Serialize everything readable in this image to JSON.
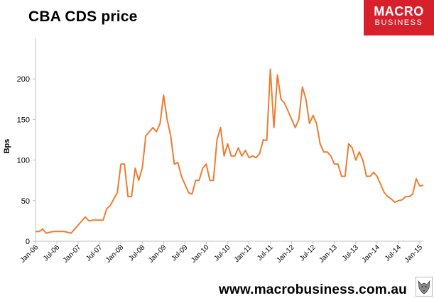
{
  "header": {
    "title": "CBA CDS price",
    "logo_line1": "MACRO",
    "logo_line2": "BUSINESS"
  },
  "footer": {
    "url": "www.macrobusiness.com.au"
  },
  "colors": {
    "line": "#ed7d31",
    "logo_bg": "#d6212c",
    "axis": "#bfbfbf"
  },
  "chart_data": {
    "type": "line",
    "title": "CBA CDS price",
    "ylabel": "Bps",
    "xlabel": "",
    "ylim": [
      0,
      250
    ],
    "yticks": [
      0,
      50,
      100,
      150,
      200
    ],
    "grid": false,
    "x_tick_labels": [
      "Jan-06",
      "Jul-06",
      "Jan-07",
      "Jul-07",
      "Jan-08",
      "Jul-08",
      "Jan-09",
      "Jul-09",
      "Jan-10",
      "Jul-10",
      "Jan-11",
      "Jul-11",
      "Jan-12",
      "Jul-12",
      "Jan-13",
      "Jul-13",
      "Jan-14",
      "Jul-14",
      "Jan-15"
    ],
    "series": [
      {
        "x": [
          "2006-01",
          "2006-02",
          "2006-03",
          "2006-04",
          "2006-05",
          "2006-06",
          "2006-07",
          "2006-08",
          "2006-09",
          "2006-10",
          "2006-11",
          "2006-12",
          "2007-01",
          "2007-02",
          "2007-03",
          "2007-04",
          "2007-05",
          "2007-06",
          "2007-07",
          "2007-08",
          "2007-09",
          "2007-10",
          "2007-11",
          "2007-12",
          "2008-01",
          "2008-02",
          "2008-03",
          "2008-04",
          "2008-05",
          "2008-06",
          "2008-07",
          "2008-08",
          "2008-09",
          "2008-10",
          "2008-11",
          "2008-12",
          "2009-01",
          "2009-02",
          "2009-03",
          "2009-04",
          "2009-05",
          "2009-06",
          "2009-07",
          "2009-08",
          "2009-09",
          "2009-10",
          "2009-11",
          "2009-12",
          "2010-01",
          "2010-02",
          "2010-03",
          "2010-04",
          "2010-05",
          "2010-06",
          "2010-07",
          "2010-08",
          "2010-09",
          "2010-10",
          "2010-11",
          "2010-12",
          "2011-01",
          "2011-02",
          "2011-03",
          "2011-04",
          "2011-05",
          "2011-06",
          "2011-07",
          "2011-08",
          "2011-09",
          "2011-10",
          "2011-11",
          "2011-12",
          "2012-01",
          "2012-02",
          "2012-03",
          "2012-04",
          "2012-05",
          "2012-06",
          "2012-07",
          "2012-08",
          "2012-09",
          "2012-10",
          "2012-11",
          "2012-12",
          "2013-01",
          "2013-02",
          "2013-03",
          "2013-04",
          "2013-05",
          "2013-06",
          "2013-07",
          "2013-08",
          "2013-09",
          "2013-10",
          "2013-11",
          "2013-12",
          "2014-01",
          "2014-02",
          "2014-03",
          "2014-04",
          "2014-05",
          "2014-06",
          "2014-07",
          "2014-08",
          "2014-09",
          "2014-10",
          "2014-11",
          "2014-12",
          "2015-01",
          "2015-02"
        ],
        "values": [
          12,
          12,
          15,
          10,
          11,
          12,
          12,
          12,
          12,
          11,
          10,
          15,
          20,
          25,
          30,
          25,
          26,
          26,
          26,
          26,
          40,
          44,
          52,
          60,
          95,
          95,
          55,
          55,
          90,
          75,
          90,
          130,
          135,
          140,
          135,
          145,
          180,
          150,
          130,
          95,
          97,
          80,
          70,
          60,
          58,
          75,
          75,
          90,
          95,
          75,
          75,
          125,
          140,
          105,
          120,
          105,
          105,
          115,
          105,
          112,
          103,
          105,
          103,
          108,
          125,
          124,
          212,
          140,
          205,
          175,
          170,
          160,
          150,
          140,
          150,
          190,
          175,
          145,
          155,
          145,
          120,
          110,
          110,
          105,
          95,
          95,
          80,
          80,
          120,
          115,
          100,
          110,
          100,
          80,
          80,
          85,
          80,
          70,
          60,
          55,
          52,
          48,
          50,
          51,
          55,
          55,
          58,
          77,
          68,
          69
        ]
      }
    ]
  }
}
